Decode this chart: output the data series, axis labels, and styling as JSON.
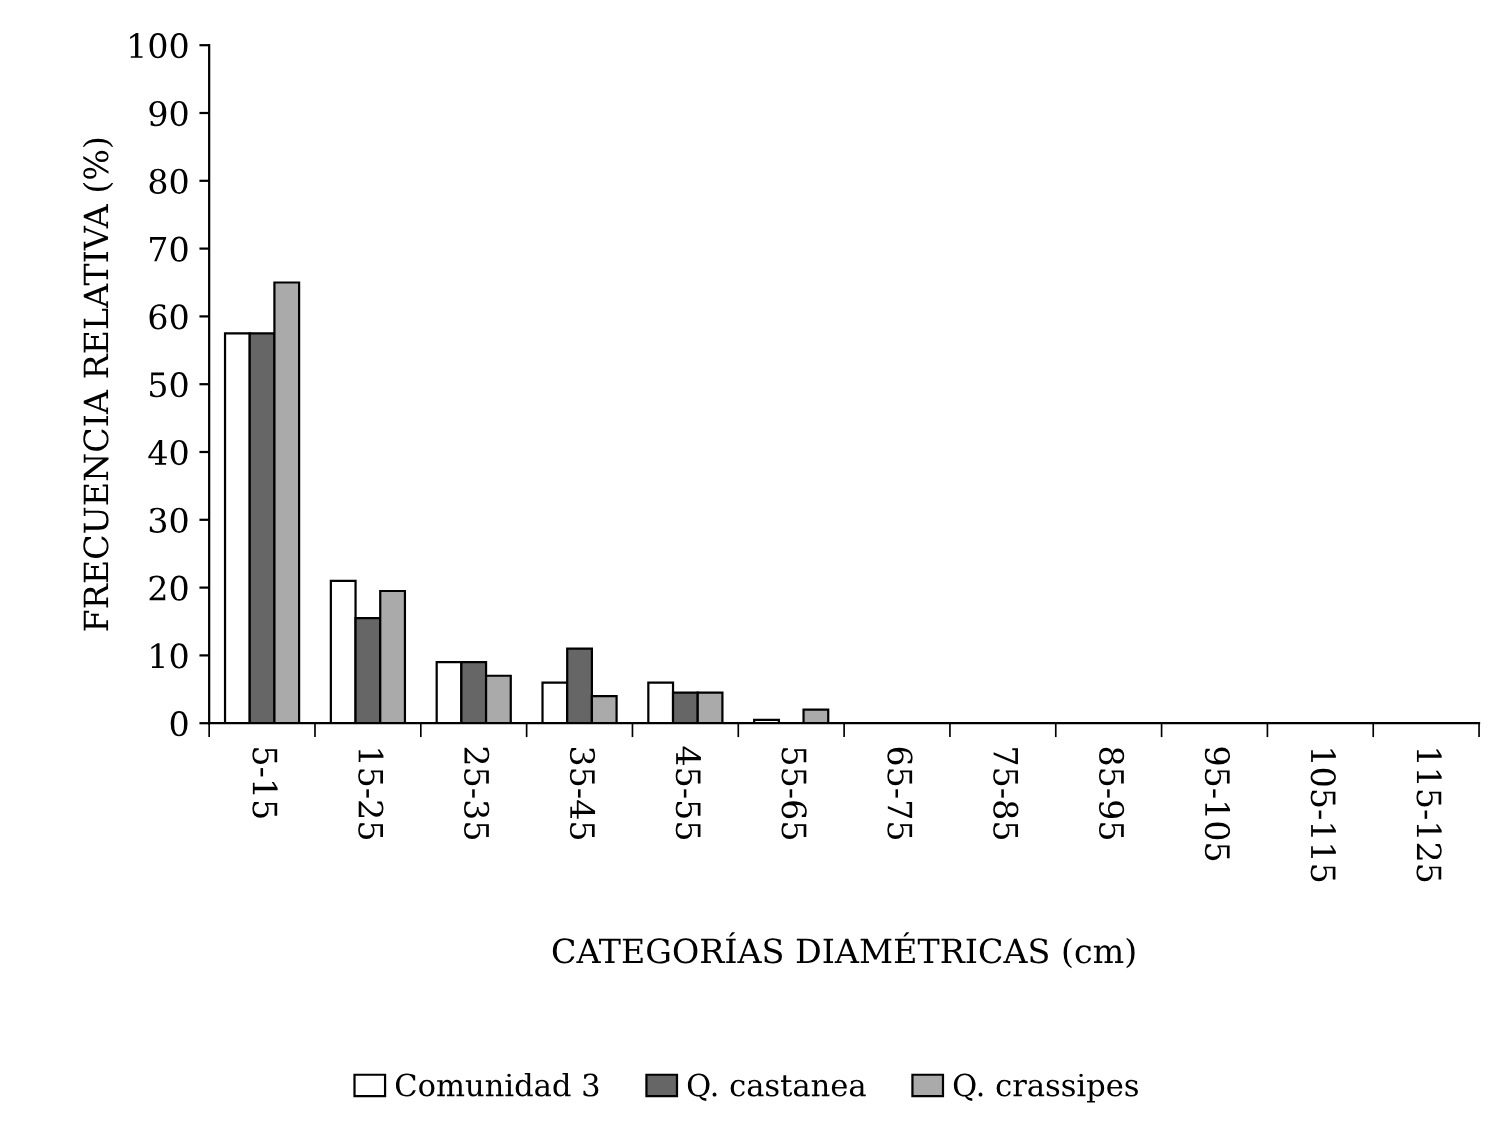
{
  "chart_data": {
    "type": "bar",
    "xlabel": "CATEGORÍAS DIAMÉTRICAS (cm)",
    "ylabel": "FRECUENCIA RELATIVA (%)",
    "categories": [
      "5-15",
      "15-25",
      "25-35",
      "35-45",
      "45-55",
      "55-65",
      "65-75",
      "75-85",
      "85-95",
      "95-105",
      "105-115",
      "115-125"
    ],
    "series": [
      {
        "name": "Comunidad 3",
        "color": "#ffffff",
        "values": [
          57.5,
          21,
          9,
          6,
          6,
          0.5,
          0,
          0,
          0,
          0,
          0,
          0
        ]
      },
      {
        "name": "Q. castanea",
        "color": "#666666",
        "values": [
          57.5,
          15.5,
          9,
          11,
          4.5,
          0,
          0,
          0,
          0,
          0,
          0,
          0
        ]
      },
      {
        "name": "Q. crassipes",
        "color": "#aaaaaa",
        "values": [
          65,
          19.5,
          7,
          4,
          4.5,
          2,
          0,
          0,
          0,
          0,
          0,
          0
        ]
      }
    ],
    "ylim": [
      0,
      100
    ],
    "yticks": [
      0,
      10,
      20,
      30,
      40,
      50,
      60,
      70,
      80,
      90,
      100
    ],
    "grid": false,
    "legend": "bottom"
  }
}
